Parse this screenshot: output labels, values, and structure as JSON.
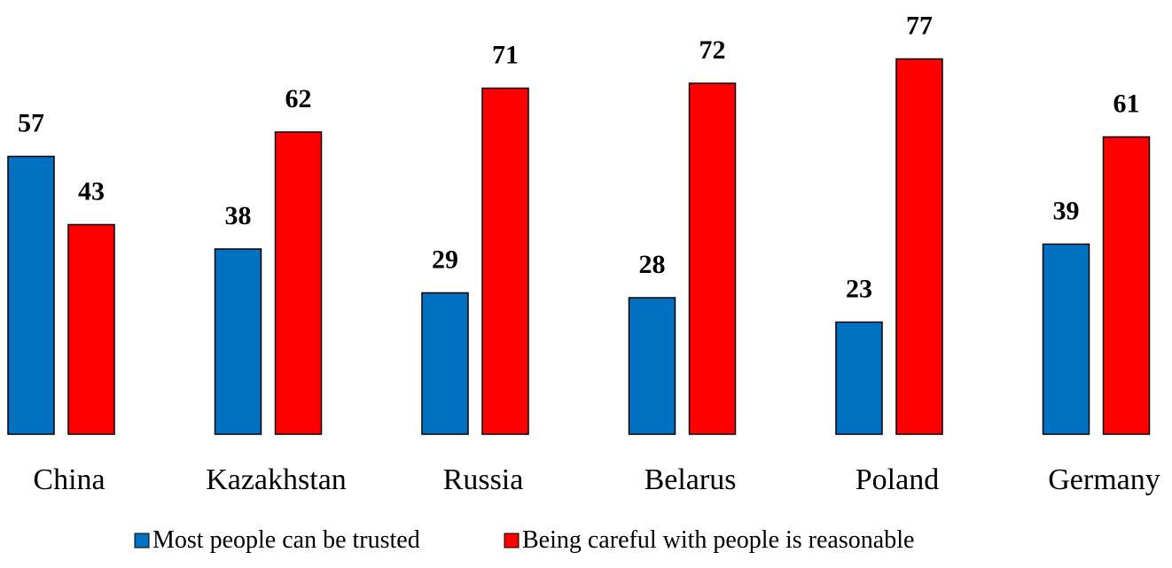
{
  "chart_data": {
    "type": "bar",
    "title": "",
    "xlabel": "",
    "ylabel": "",
    "categories": [
      "China",
      "Kazakhstan",
      "Russia",
      "Belarus",
      "Poland",
      "Germany"
    ],
    "series": [
      {
        "name": "Most people can be trusted",
        "color": "#0070C0",
        "values": [
          57,
          38,
          29,
          28,
          23,
          39
        ]
      },
      {
        "name": "Being careful with people is reasonable",
        "color": "#FF0000",
        "values": [
          43,
          62,
          71,
          72,
          77,
          61
        ]
      }
    ],
    "ylim": [
      0,
      100
    ],
    "grid": false,
    "data_labels": true,
    "legend_position": "bottom"
  }
}
